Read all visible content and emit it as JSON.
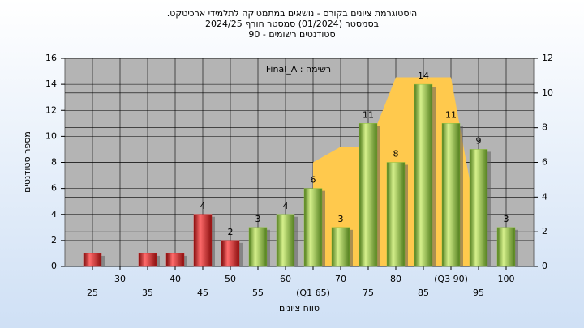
{
  "chart_data": {
    "type": "bar",
    "title": "היסטוגרמת ציונים בקורס - נושאים במתמטיקה לתלמידי ארכיטקט.",
    "subtitle": "בסמסטר  (01/2024)  סמסטר חורף 2024/25",
    "subtitle2": "סטודנטים רשומים - 90",
    "annotation": "רשימה : Final_A",
    "x_label": "טווח ציונים",
    "y_label": "מספר סטודנטים",
    "x": [
      25,
      30,
      35,
      40,
      45,
      50,
      55,
      60,
      65,
      70,
      75,
      80,
      85,
      90,
      95,
      100
    ],
    "xlim": [
      20,
      105
    ],
    "xticks": [
      25,
      30,
      35,
      40,
      45,
      50,
      55,
      60,
      {
        "value": 65,
        "label": "(Q1 65)"
      },
      70,
      75,
      80,
      85,
      {
        "value": 90,
        "label": "(Q3 90)"
      },
      95,
      100
    ],
    "ylim": [
      0,
      16
    ],
    "yticks": [
      0,
      2,
      4,
      6,
      8,
      10,
      12,
      14,
      16
    ],
    "y2lim": [
      0,
      12
    ],
    "y2ticks": [
      0,
      2,
      4,
      6,
      8,
      10,
      12
    ],
    "grid": true,
    "series": [
      {
        "type": "bar",
        "values": [
          1,
          0,
          1,
          1,
          4,
          2,
          3,
          4,
          6,
          3,
          11,
          8,
          14,
          11,
          9,
          3
        ],
        "value_labels": [
          null,
          null,
          null,
          null,
          "4",
          "2",
          "3",
          "4",
          "6",
          "3",
          "11",
          "8",
          "14",
          "11",
          "9",
          "3"
        ],
        "colors": [
          "#d42020",
          "#d42020",
          "#d42020",
          "#d42020",
          "#d42020",
          "#d42020",
          "#8cbf3c",
          "#8cbf3c",
          "#8cbf3c",
          "#8cbf3c",
          "#8cbf3c",
          "#8cbf3c",
          "#8cbf3c",
          "#8cbf3c",
          "#8cbf3c",
          "#8cbf3c"
        ]
      },
      {
        "type": "area",
        "axis": "y2",
        "color": "#ffc94d",
        "x": [
          65,
          70,
          75,
          80,
          90,
          94
        ],
        "values": [
          6,
          6.9,
          6.9,
          10.9,
          10.9,
          3.9
        ]
      }
    ]
  }
}
